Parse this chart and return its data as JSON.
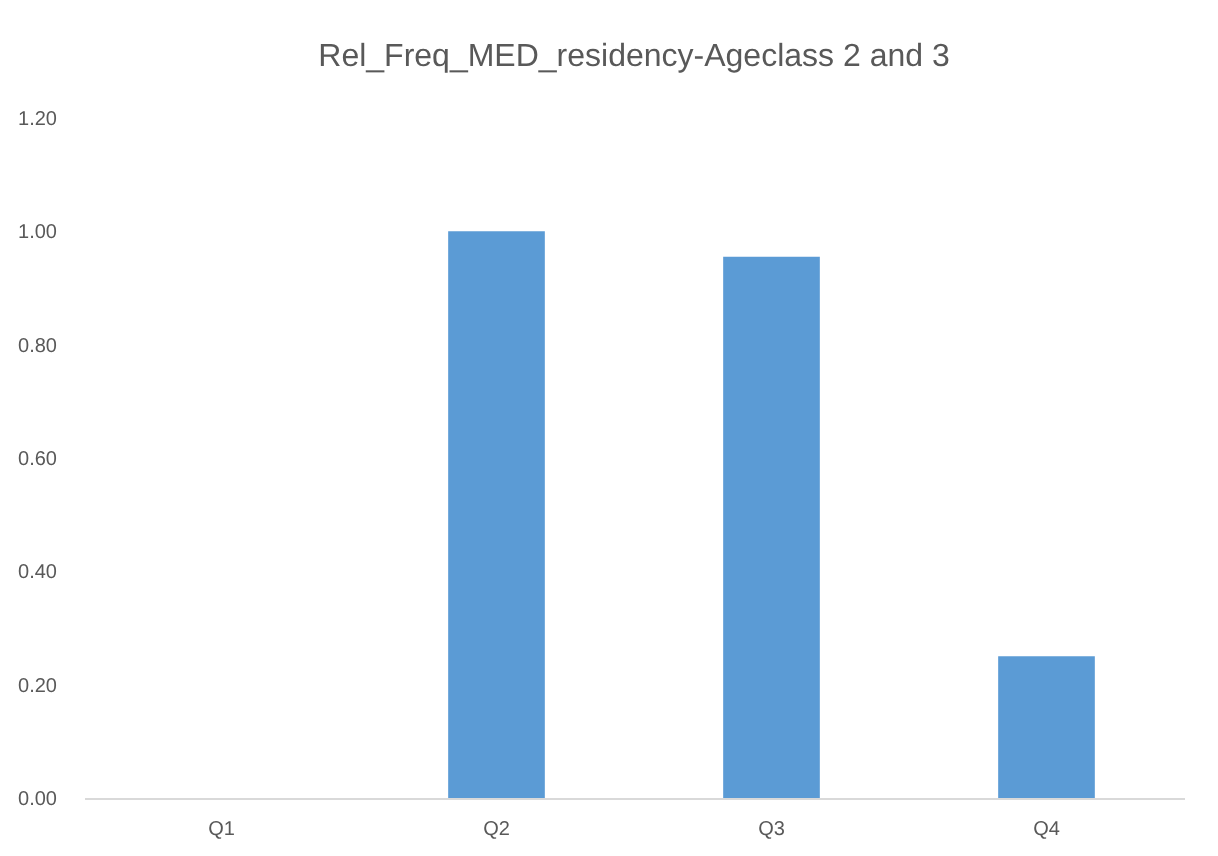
{
  "chart_data": {
    "type": "bar",
    "title": "Rel_Freq_MED_residency-Ageclass 2 and 3",
    "categories": [
      "Q1",
      "Q2",
      "Q3",
      "Q4"
    ],
    "values": [
      0,
      1.0,
      0.955,
      0.25
    ],
    "color": "#5b9bd5",
    "ylim": [
      0,
      1.2
    ],
    "yticks": [
      {
        "value": 0,
        "label": "0.00"
      },
      {
        "value": 0.2,
        "label": "0.20"
      },
      {
        "value": 0.4,
        "label": "0.40"
      },
      {
        "value": 0.6,
        "label": "0.60"
      },
      {
        "value": 0.8,
        "label": "0.80"
      },
      {
        "value": 1.0,
        "label": "1.00"
      },
      {
        "value": 1.2,
        "label": "1.20"
      }
    ]
  }
}
